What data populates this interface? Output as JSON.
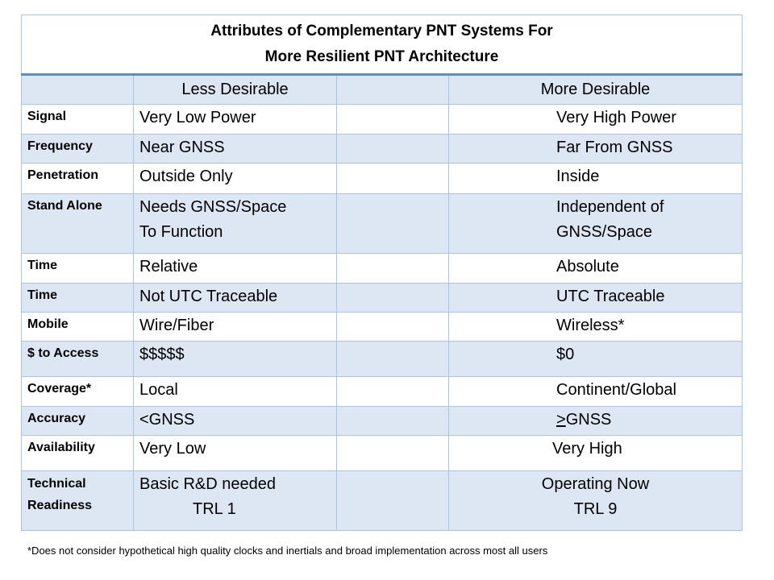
{
  "title": {
    "line1": "Attributes of Complementary PNT Systems For",
    "line2": "More Resilient PNT Architecture"
  },
  "header": {
    "less_label": "Less Desirable",
    "more_label": "More Desirable"
  },
  "rows": [
    {
      "attribute": "Signal",
      "less": "Very Low Power",
      "more": "Very High Power"
    },
    {
      "attribute": "Frequency",
      "less": "Near GNSS",
      "more": "Far From GNSS"
    },
    {
      "attribute": "Penetration",
      "less": "Outside Only",
      "more": "Inside"
    },
    {
      "attribute": "Stand  Alone",
      "less_line1": "Needs GNSS/Space",
      "less_line2": "To Function",
      "more_line1": "Independent of",
      "more_line2": "GNSS/Space"
    },
    {
      "attribute": "Time",
      "less": "Relative",
      "more": "Absolute"
    },
    {
      "attribute": "Time",
      "less": "Not UTC Traceable",
      "more": "UTC Traceable"
    },
    {
      "attribute": "Mobile",
      "less": "Wire/Fiber",
      "more": "Wireless*"
    },
    {
      "attribute": "$ to Access",
      "less": "$$$$$",
      "more": "$0"
    },
    {
      "attribute": "Coverage*",
      "less": "Local",
      "more": "Continent/Global"
    },
    {
      "attribute": "Accuracy",
      "less": "<GNSS",
      "more_symbol": ">",
      "more_rest": "GNSS"
    },
    {
      "attribute": "Availability",
      "less": "Very Low",
      "more": "Very High"
    },
    {
      "attribute_line1": "Technical",
      "attribute_line2": "Readiness",
      "less_line1": "Basic R&D needed",
      "less_line2": "TRL 1",
      "more_line1": "Operating Now",
      "more_line2": "TRL 9"
    }
  ],
  "footnote": "*Does not consider hypothetical high quality clocks and inertials and broad implementation  across most all users",
  "colors": {
    "shaded_row": "#dde7f4",
    "border": "#a9c4e4",
    "title_rule": "#5b8fc9"
  }
}
